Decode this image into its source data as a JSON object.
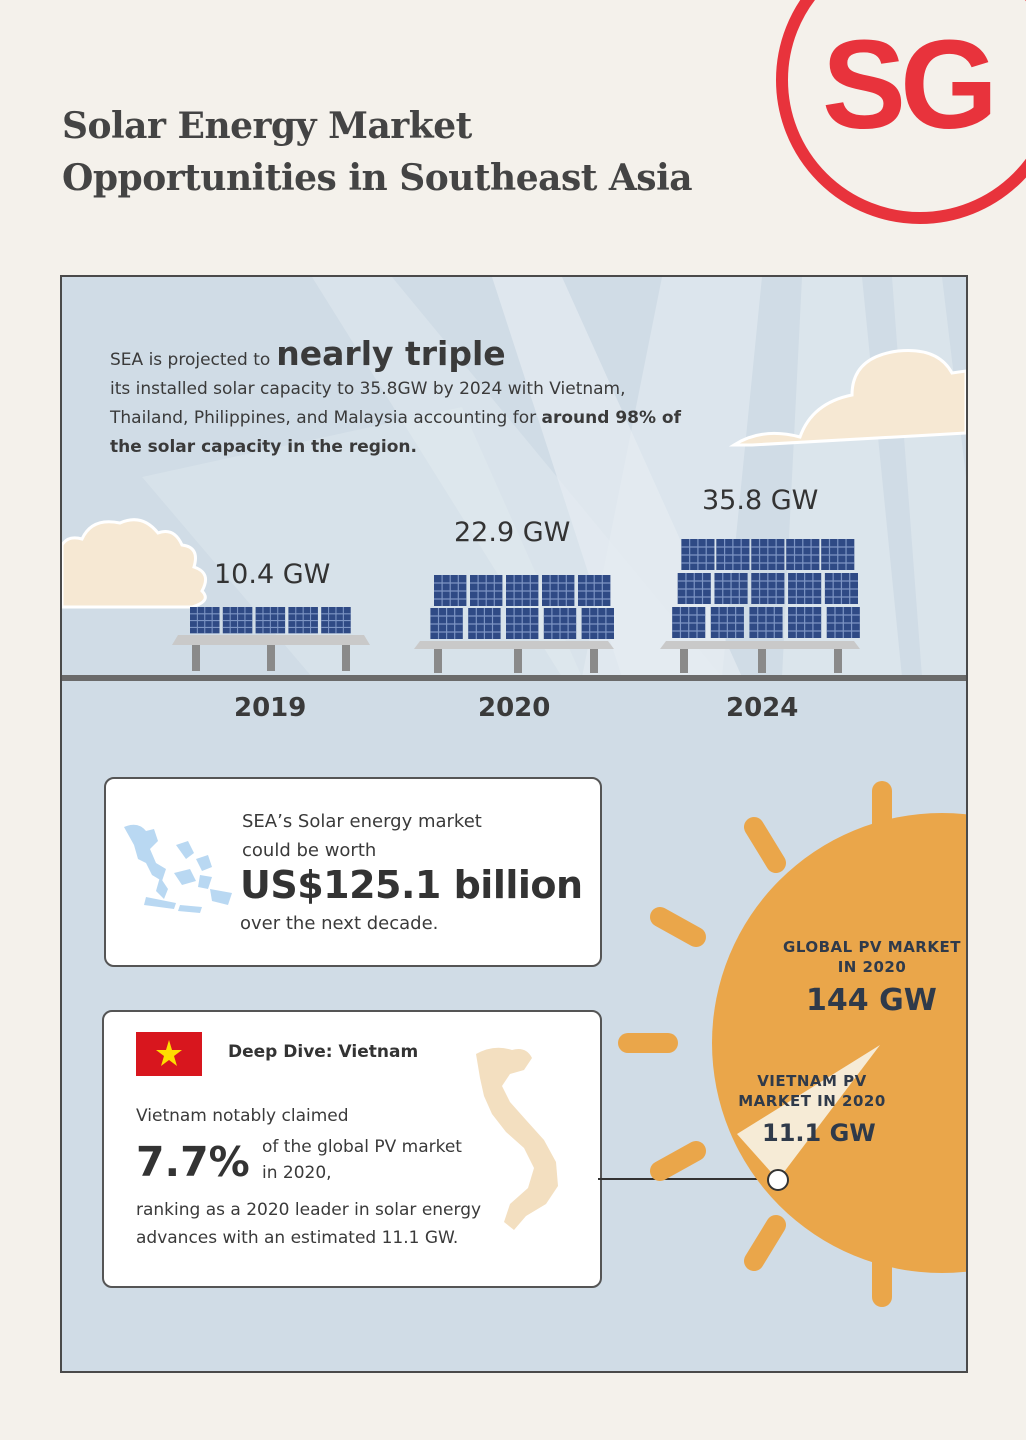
{
  "header": {
    "title_line1": "Solar Energy Market",
    "title_line2": "Opportunities in Southeast Asia",
    "logo_text": "SG"
  },
  "headline": {
    "intro": "SEA is projected to",
    "emphasis": "nearly triple",
    "body": "its installed solar capacity to 35.8GW by 2024 with Vietnam, Thailand, Philippines, and Malaysia accounting for",
    "bold_tail": "around 98% of the solar capacity in the region."
  },
  "capacity": [
    {
      "year": "2019",
      "value": "10.4 GW"
    },
    {
      "year": "2020",
      "value": "22.9 GW"
    },
    {
      "year": "2024",
      "value": "35.8 GW"
    }
  ],
  "market_card": {
    "lead": "SEA’s Solar energy market could be worth",
    "amount": "US$125.1 billion",
    "tail": "over the next decade."
  },
  "vietnam_card": {
    "title": "Deep Dive: Vietnam",
    "intro": "Vietnam notably claimed",
    "percent": "7.7%",
    "percent_context": "of the global PV market in 2020,",
    "conclusion": "ranking as a 2020 leader in solar energy advances with an estimated 11.1 GW."
  },
  "sun": {
    "global_label": "GLOBAL PV MARKET IN 2020",
    "global_value": "144 GW",
    "vietnam_label": "VIETNAM PV MARKET IN 2020",
    "vietnam_value": "11.1 GW"
  },
  "colors": {
    "background": "#f4f1eb",
    "panel_sky": "#d0dce6",
    "brand_red": "#e8333c",
    "sun_orange": "#eaa64a",
    "solar_panel": "#2f4a85"
  },
  "icons": [
    "sg-logo",
    "cloud",
    "solar-panel",
    "sea-map",
    "vietnam-flag",
    "vietnam-map",
    "sun"
  ]
}
